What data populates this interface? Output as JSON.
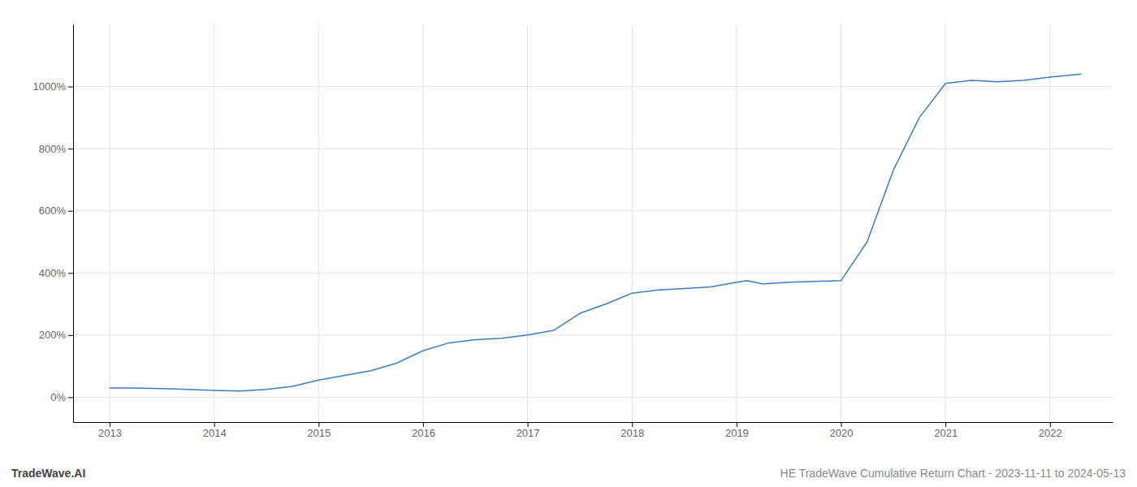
{
  "chart_data": {
    "type": "line",
    "x": [
      2013.0,
      2013.2,
      2013.5,
      2013.75,
      2014.0,
      2014.25,
      2014.5,
      2014.75,
      2015.0,
      2015.25,
      2015.5,
      2015.75,
      2016.0,
      2016.25,
      2016.5,
      2016.75,
      2017.0,
      2017.25,
      2017.5,
      2017.75,
      2018.0,
      2018.25,
      2018.5,
      2018.75,
      2019.0,
      2019.1,
      2019.25,
      2019.5,
      2020.0,
      2020.25,
      2020.5,
      2020.75,
      2021.0,
      2021.25,
      2021.5,
      2021.75,
      2022.0,
      2022.3
    ],
    "values": [
      30,
      30,
      28,
      25,
      22,
      20,
      25,
      35,
      55,
      70,
      85,
      110,
      150,
      175,
      185,
      190,
      200,
      215,
      270,
      300,
      335,
      345,
      350,
      355,
      370,
      375,
      365,
      370,
      375,
      500,
      730,
      900,
      1010,
      1020,
      1015,
      1020,
      1030,
      1040
    ],
    "color": "#3a7ebf",
    "xlim": [
      2012.65,
      2022.6
    ],
    "xticks": [
      2013,
      2014,
      2015,
      2016,
      2017,
      2018,
      2019,
      2020,
      2021,
      2022
    ],
    "ylim": [
      -80,
      1200
    ],
    "yticks": [
      {
        "value": 0,
        "label": "0%"
      },
      {
        "value": 200,
        "label": "200%"
      },
      {
        "value": 400,
        "label": "400%"
      },
      {
        "value": 600,
        "label": "600%"
      },
      {
        "value": 800,
        "label": "800%"
      },
      {
        "value": 1000,
        "label": "1000%"
      }
    ],
    "grid": true,
    "annotations": [
      "TradeWave.AI",
      "HE TradeWave Cumulative Return Chart - 2023-11-11 to 2024-05-13"
    ]
  }
}
